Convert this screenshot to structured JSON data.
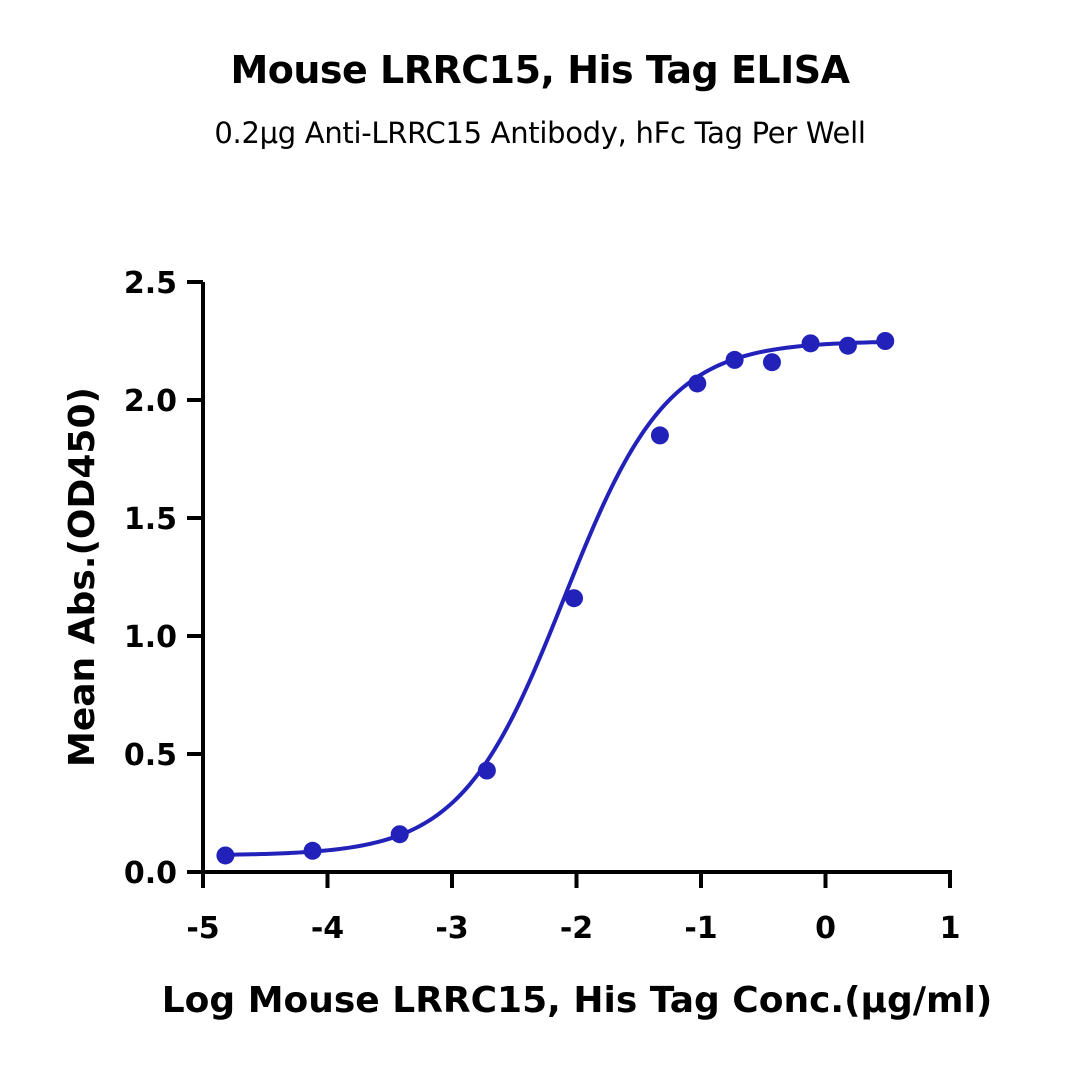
{
  "chart_data": {
    "type": "scatter",
    "title": "Mouse LRRC15, His Tag ELISA",
    "subtitle": "0.2μg Anti-LRRC15 Antibody, hFc Tag Per Well",
    "xlabel": "Log  Mouse LRRC15, His Tag Conc.(μg/ml)",
    "ylabel": "Mean Abs.(OD450)",
    "xlim": [
      -5,
      1
    ],
    "ylim": [
      0,
      2.5
    ],
    "xticks": [
      "-5",
      "-4",
      "-3",
      "-2",
      "-1",
      "0",
      "1"
    ],
    "yticks": [
      "0.0",
      "0.5",
      "1.0",
      "1.5",
      "2.0",
      "2.5"
    ],
    "xtick_values": [
      -5,
      -4,
      -3,
      -2,
      -1,
      0,
      1
    ],
    "ytick_values": [
      0,
      0.5,
      1.0,
      1.5,
      2.0,
      2.5
    ],
    "color": "#2222bb",
    "grid": false,
    "legend": "none",
    "points": {
      "x": [
        -4.82,
        -4.12,
        -3.42,
        -2.72,
        -2.02,
        -1.33,
        -1.03,
        -0.73,
        -0.43,
        -0.12,
        0.18,
        0.48
      ],
      "y": [
        0.07,
        0.09,
        0.16,
        0.43,
        1.16,
        1.85,
        2.07,
        2.17,
        2.16,
        2.24,
        2.23,
        2.25
      ]
    },
    "fit": {
      "model": "4PL",
      "bottom": 0.07,
      "top": 2.25,
      "logEC50": -2.1,
      "hill": 1.05
    }
  }
}
